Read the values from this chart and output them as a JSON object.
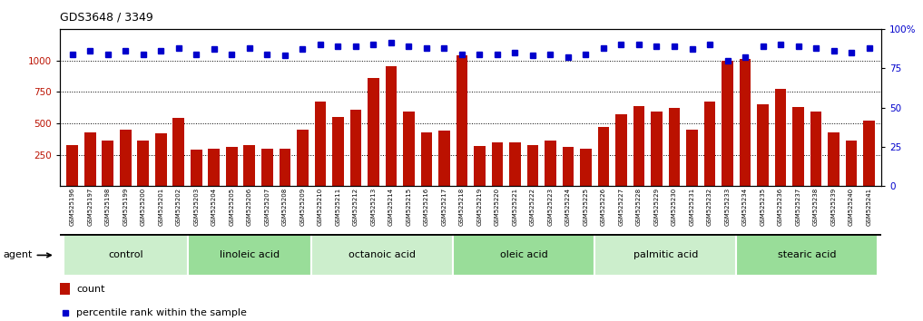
{
  "title": "GDS3648 / 3349",
  "samples": [
    "GSM525196",
    "GSM525197",
    "GSM525198",
    "GSM525199",
    "GSM525200",
    "GSM525201",
    "GSM525202",
    "GSM525203",
    "GSM525204",
    "GSM525205",
    "GSM525206",
    "GSM525207",
    "GSM525208",
    "GSM525209",
    "GSM525210",
    "GSM525211",
    "GSM525212",
    "GSM525213",
    "GSM525214",
    "GSM525215",
    "GSM525216",
    "GSM525217",
    "GSM525218",
    "GSM525219",
    "GSM525220",
    "GSM525221",
    "GSM525222",
    "GSM525223",
    "GSM525224",
    "GSM525225",
    "GSM525226",
    "GSM525227",
    "GSM525228",
    "GSM525229",
    "GSM525230",
    "GSM525231",
    "GSM525232",
    "GSM525233",
    "GSM525234",
    "GSM525235",
    "GSM525236",
    "GSM525237",
    "GSM525238",
    "GSM525239",
    "GSM525240",
    "GSM525241"
  ],
  "counts": [
    330,
    430,
    360,
    450,
    360,
    420,
    540,
    290,
    300,
    310,
    330,
    300,
    300,
    450,
    670,
    550,
    610,
    860,
    950,
    590,
    430,
    440,
    1040,
    320,
    350,
    350,
    330,
    360,
    310,
    300,
    470,
    570,
    640,
    590,
    620,
    450,
    670,
    1000,
    1010,
    650,
    770,
    630,
    590,
    430,
    360,
    520
  ],
  "percentiles": [
    84,
    86,
    84,
    86,
    84,
    86,
    88,
    84,
    87,
    84,
    88,
    84,
    83,
    87,
    90,
    89,
    89,
    90,
    91,
    89,
    88,
    88,
    84,
    84,
    84,
    85,
    83,
    84,
    82,
    84,
    88,
    90,
    90,
    89,
    89,
    87,
    90,
    80,
    82,
    89,
    90,
    89,
    88,
    86,
    85,
    88
  ],
  "groups": [
    {
      "label": "control",
      "start": 0,
      "end": 7
    },
    {
      "label": "linoleic acid",
      "start": 7,
      "end": 14
    },
    {
      "label": "octanoic acid",
      "start": 14,
      "end": 22
    },
    {
      "label": "oleic acid",
      "start": 22,
      "end": 30
    },
    {
      "label": "palmitic acid",
      "start": 30,
      "end": 38
    },
    {
      "label": "stearic acid",
      "start": 38,
      "end": 46
    }
  ],
  "bar_color": "#bb1100",
  "dot_color": "#0000cc",
  "ylim_left": [
    0,
    1250
  ],
  "ylim_right": [
    0,
    100
  ],
  "yticks_left": [
    250,
    500,
    750,
    1000
  ],
  "yticks_right": [
    0,
    25,
    50,
    75,
    100
  ],
  "group_bg_colors": [
    "#cceecc",
    "#99dd99",
    "#cceecc",
    "#99dd99",
    "#cceecc",
    "#99dd99"
  ],
  "xticklabel_bg": "#d8d8d8",
  "plot_bg": "#ffffff"
}
